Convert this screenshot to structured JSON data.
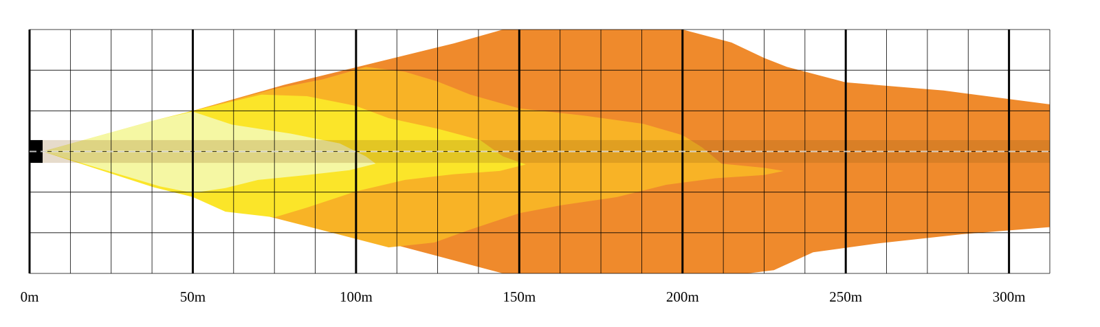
{
  "chart_data": {
    "type": "area",
    "title": "",
    "xlabel": "",
    "ylabel": "",
    "x_unit": "m",
    "xlim": [
      0,
      312.5
    ],
    "ylim": [
      -15,
      15
    ],
    "y_reference": 0,
    "grid": true,
    "grid_step_x": 12.5,
    "major_step_x": 50,
    "grid_step_y": 5,
    "x_ticks": [
      0,
      50,
      100,
      150,
      200,
      250,
      300
    ],
    "x_tick_labels": [
      "0m",
      "50m",
      "100m",
      "150m",
      "200m",
      "250m",
      "300m"
    ],
    "colors": {
      "zone_far": "#ef8a2c",
      "zone_mid": "#f8b326",
      "zone_near": "#fbe529",
      "zone_close": "#f5f7a3",
      "vehicle_band": "rgba(140,90,20,0.22)",
      "centerline": "#ffffff",
      "grid_minor": "#000000",
      "grid_major": "#000000"
    },
    "series": [
      {
        "key": "zone_far",
        "color": "#ef8a2c",
        "upper": [
          [
            4,
            0
          ],
          [
            50,
            5
          ],
          [
            78,
            8.2
          ],
          [
            130,
            13.3
          ],
          [
            145,
            15
          ],
          [
            160,
            15
          ],
          [
            200,
            15
          ],
          [
            215,
            13.4
          ],
          [
            225,
            11.5
          ],
          [
            232,
            10.4
          ],
          [
            250,
            8.5
          ],
          [
            280,
            7.5
          ],
          [
            312.5,
            5.8
          ]
        ],
        "lower": [
          [
            312.5,
            -9.3
          ],
          [
            285,
            -10.2
          ],
          [
            260,
            -11.3
          ],
          [
            240,
            -12.4
          ],
          [
            228,
            -14.6
          ],
          [
            220,
            -15
          ],
          [
            145,
            -15
          ],
          [
            4,
            0
          ]
        ]
      },
      {
        "key": "zone_mid",
        "color": "#f8b326",
        "upper": [
          [
            4,
            0
          ],
          [
            50,
            5
          ],
          [
            75,
            7.7
          ],
          [
            90,
            8.9
          ],
          [
            103,
            10.4
          ],
          [
            115,
            9.8
          ],
          [
            125,
            8.6
          ],
          [
            135,
            7
          ],
          [
            150,
            5.3
          ],
          [
            170,
            4.4
          ],
          [
            188,
            3.4
          ],
          [
            200,
            2
          ],
          [
            206,
            0.5
          ],
          [
            212,
            -1.5
          ],
          [
            225,
            -2
          ],
          [
            231,
            -2.4
          ]
        ],
        "lower": [
          [
            231,
            -2.4
          ],
          [
            225,
            -2.9
          ],
          [
            210,
            -3.3
          ],
          [
            195,
            -4.1
          ],
          [
            180,
            -5.6
          ],
          [
            163,
            -6.6
          ],
          [
            150,
            -7.6
          ],
          [
            135,
            -9.6
          ],
          [
            124,
            -11.2
          ],
          [
            110,
            -11.8
          ],
          [
            85,
            -9.2
          ],
          [
            50,
            -5.6
          ],
          [
            4,
            0
          ]
        ]
      },
      {
        "key": "zone_near",
        "color": "#fbe529",
        "upper": [
          [
            4,
            0
          ],
          [
            38,
            3.8
          ],
          [
            50,
            5
          ],
          [
            71,
            7
          ],
          [
            85,
            6.8
          ],
          [
            100,
            5.6
          ],
          [
            110,
            4.1
          ],
          [
            125,
            2.8
          ],
          [
            138,
            1.4
          ],
          [
            145,
            -0.6
          ],
          [
            152,
            -1.6
          ]
        ],
        "lower": [
          [
            152,
            -1.6
          ],
          [
            144,
            -2.4
          ],
          [
            130,
            -2.8
          ],
          [
            115,
            -3.5
          ],
          [
            100,
            -4.9
          ],
          [
            85,
            -6.9
          ],
          [
            75,
            -8.1
          ],
          [
            60,
            -7.4
          ],
          [
            50,
            -5.6
          ],
          [
            38,
            -4.4
          ],
          [
            4,
            0
          ]
        ]
      },
      {
        "key": "zone_close",
        "color": "#f5f7a3",
        "upper": [
          [
            4,
            0
          ],
          [
            38,
            3.8
          ],
          [
            50,
            4.9
          ],
          [
            62,
            3.3
          ],
          [
            80,
            2.2
          ],
          [
            95,
            1
          ],
          [
            103,
            -0.6
          ],
          [
            106,
            -1.5
          ]
        ],
        "lower": [
          [
            106,
            -1.5
          ],
          [
            98,
            -2.3
          ],
          [
            85,
            -2.9
          ],
          [
            70,
            -3.5
          ],
          [
            60,
            -4.5
          ],
          [
            50,
            -5.1
          ],
          [
            40,
            -4.3
          ],
          [
            4,
            0
          ]
        ]
      }
    ],
    "vehicle_band": [
      -1.4,
      1.4
    ],
    "vehicle_x": [
      0,
      4
    ]
  }
}
